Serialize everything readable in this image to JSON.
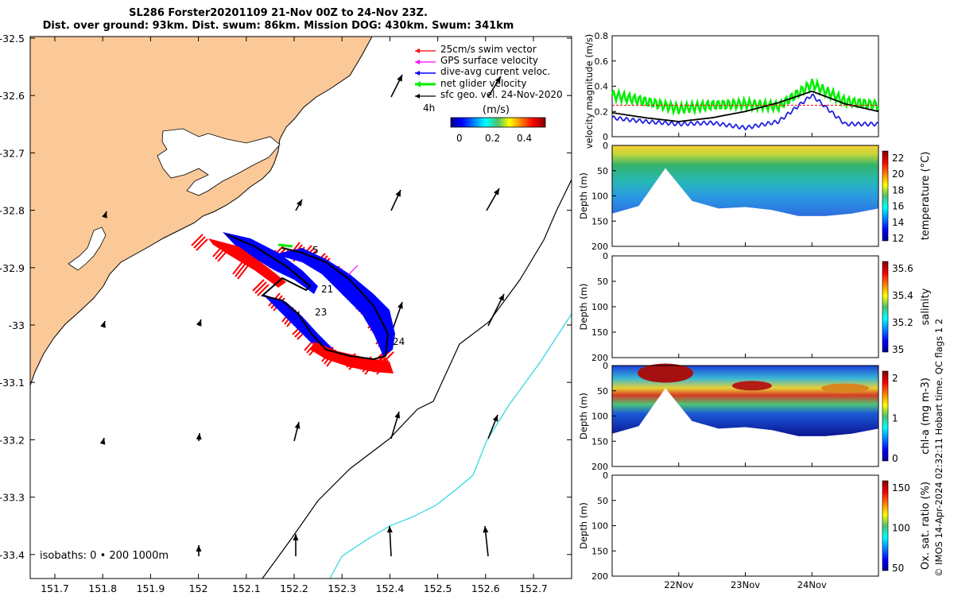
{
  "header": {
    "title_line1": "SL286 Forster20201109 21-Nov 00Z to 24-Nov 23Z.",
    "title_line2": "Dist. over ground: 93km. Dist. swum: 86km. Mission DOG: 430km. Swum: 341km"
  },
  "map": {
    "xticks": [
      "151.7",
      "151.8",
      "151.9",
      "152",
      "152.1",
      "152.2",
      "152.3",
      "152.4",
      "152.5",
      "152.6",
      "152.7"
    ],
    "yticks": [
      "-32.5",
      "-32.6",
      "-32.7",
      "-32.8",
      "-32.9",
      "-33",
      "-33.1",
      "-33.2",
      "-33.3",
      "-33.4"
    ],
    "legend": [
      {
        "label": "25cm/s swim vector",
        "color": "#ff0000"
      },
      {
        "label": "GPS surface velocity",
        "color": "#ff00ff"
      },
      {
        "label": "dive-avg current veloc.",
        "color": "#0000ff"
      },
      {
        "label": "net glider velocity",
        "color": "#00ff00"
      },
      {
        "label": "sfc geo. vel. 24-Nov-2020",
        "color": "#000000"
      }
    ],
    "scale_label": "4h",
    "colorbar_unit": "(m/s)",
    "colorbar_ticks": [
      "0",
      "0.2",
      "0.4"
    ],
    "day_labels": [
      "5",
      "21",
      "23",
      "24"
    ],
    "isobath_label": "isobaths: 0 • 200  1000m",
    "land_color": "#fbc898",
    "isobath_200_color": "#000000",
    "isobath_1000_color": "#27d8de"
  },
  "chart_data": [
    {
      "type": "line",
      "title": "",
      "ylabel": "velocity magnitude (m/s)",
      "ylim": [
        0,
        0.8
      ],
      "yticks": [
        "0",
        "0.2",
        "0.4",
        "0.6",
        "0.8"
      ],
      "xticks": [
        "22Nov",
        "23Nov",
        "24Nov"
      ],
      "x_days": [
        21.0,
        21.5,
        22.0,
        22.5,
        23.0,
        23.5,
        24.0,
        24.5,
        25.0
      ],
      "series": [
        {
          "color": "#00ee00",
          "values": [
            0.33,
            0.28,
            0.22,
            0.25,
            0.26,
            0.24,
            0.42,
            0.28,
            0.25
          ]
        },
        {
          "color": "#2222dd",
          "values": [
            0.15,
            0.12,
            0.1,
            0.11,
            0.07,
            0.12,
            0.33,
            0.1,
            0.1
          ]
        },
        {
          "color": "#000000",
          "values": [
            0.19,
            0.15,
            0.12,
            0.15,
            0.2,
            0.27,
            0.36,
            0.26,
            0.2
          ]
        }
      ]
    },
    {
      "type": "heatmap",
      "ylabel": "Depth (m)",
      "colorbar_label": "temperature (°C)",
      "cbar_ticks": [
        "12",
        "14",
        "16",
        "18",
        "20",
        "22"
      ],
      "yticks": [
        "0",
        "50",
        "100",
        "150",
        "200"
      ]
    },
    {
      "type": "heatmap",
      "ylabel": "Depth (m)",
      "colorbar_label": "salinity",
      "cbar_ticks": [
        "35",
        "35.2",
        "35.4",
        "35.6"
      ],
      "yticks": [
        "0",
        "50",
        "100",
        "150",
        "200"
      ]
    },
    {
      "type": "heatmap",
      "ylabel": "Depth (m)",
      "colorbar_label": "chl-a (mg m-3)",
      "cbar_ticks": [
        "0",
        "1",
        "2"
      ],
      "yticks": [
        "0",
        "50",
        "100",
        "150",
        "200"
      ]
    },
    {
      "type": "heatmap",
      "ylabel": "Depth (m)",
      "colorbar_label": "Ox. sat. ratio (%)",
      "cbar_ticks": [
        "50",
        "100",
        "150"
      ],
      "yticks": [
        "0",
        "50",
        "100",
        "150",
        "200"
      ],
      "xticks": [
        "22Nov",
        "23Nov",
        "24Nov"
      ]
    }
  ],
  "side_note": "© IMOS 14-Apr-2024 02:32:11 Hobart time. QC flags 1  2"
}
